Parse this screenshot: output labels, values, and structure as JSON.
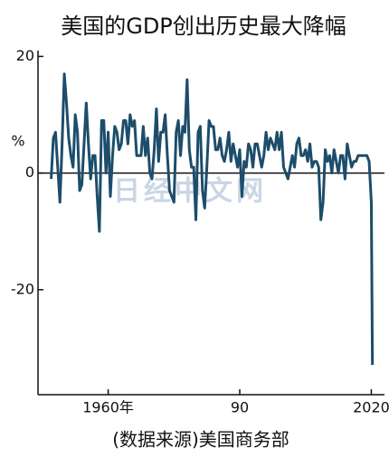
{
  "chart_data": {
    "type": "line",
    "title": "美国的GDP创出历史最大降幅",
    "source": "(数据来源)美国商务部",
    "watermark": "日经中文网",
    "ylabel": "%",
    "color": "#1d4d6a",
    "x": [
      1947.0,
      1947.5,
      1948.0,
      1948.5,
      1949.0,
      1949.5,
      1950.0,
      1950.5,
      1951.0,
      1951.5,
      1952.0,
      1952.5,
      1953.0,
      1953.5,
      1954.0,
      1954.5,
      1955.0,
      1955.5,
      1956.0,
      1956.5,
      1957.0,
      1957.5,
      1958.0,
      1958.5,
      1959.0,
      1959.5,
      1960.0,
      1960.5,
      1961.0,
      1961.5,
      1962.0,
      1962.5,
      1963.0,
      1963.5,
      1964.0,
      1964.5,
      1965.0,
      1965.5,
      1966.0,
      1966.5,
      1967.0,
      1967.5,
      1968.0,
      1968.5,
      1969.0,
      1969.5,
      1970.0,
      1970.5,
      1971.0,
      1971.5,
      1972.0,
      1972.5,
      1973.0,
      1973.5,
      1974.0,
      1974.5,
      1975.0,
      1975.5,
      1976.0,
      1976.5,
      1977.0,
      1977.5,
      1978.0,
      1978.5,
      1979.0,
      1979.5,
      1980.0,
      1980.5,
      1981.0,
      1981.5,
      1982.0,
      1982.5,
      1983.0,
      1983.5,
      1984.0,
      1984.5,
      1985.0,
      1985.5,
      1986.0,
      1986.5,
      1987.0,
      1987.5,
      1988.0,
      1988.5,
      1989.0,
      1989.5,
      1990.0,
      1990.5,
      1991.0,
      1991.5,
      1992.0,
      1992.5,
      1993.0,
      1993.5,
      1994.0,
      1994.5,
      1995.0,
      1995.5,
      1996.0,
      1996.5,
      1997.0,
      1997.5,
      1998.0,
      1998.5,
      1999.0,
      1999.5,
      2000.0,
      2000.5,
      2001.0,
      2001.5,
      2002.0,
      2002.5,
      2003.0,
      2003.5,
      2004.0,
      2004.5,
      2005.0,
      2005.5,
      2006.0,
      2006.5,
      2007.0,
      2007.5,
      2008.0,
      2008.5,
      2009.0,
      2009.5,
      2010.0,
      2010.5,
      2011.0,
      2011.5,
      2012.0,
      2012.5,
      2013.0,
      2013.5,
      2014.0,
      2014.5,
      2015.0,
      2015.5,
      2016.0,
      2016.5,
      2017.0,
      2017.5,
      2018.0,
      2018.5,
      2019.0,
      2019.5,
      2020.0,
      2020.25
    ],
    "values": [
      -1,
      6,
      7,
      1,
      -5,
      5,
      17,
      12,
      6,
      3,
      1,
      10,
      7,
      -3,
      -2,
      5,
      12,
      5,
      -1,
      3,
      3,
      -4,
      -10,
      9,
      9,
      0,
      7,
      -4,
      3,
      8,
      7,
      4,
      5,
      9,
      9,
      5,
      10,
      8,
      9,
      3,
      3,
      3,
      8,
      3,
      6,
      0,
      -1,
      4,
      11,
      2,
      7,
      7,
      10,
      3,
      -3,
      -4,
      -5,
      7,
      9,
      3,
      8,
      7,
      16,
      4,
      1,
      1,
      -8,
      7,
      8,
      -3,
      -6,
      1,
      9,
      8,
      8,
      4,
      4,
      6,
      3,
      2,
      4,
      7,
      2,
      5,
      3,
      1,
      4,
      -4,
      2,
      1,
      5,
      4,
      1,
      5,
      5,
      3,
      1,
      3,
      7,
      4,
      6,
      5,
      4,
      7,
      4,
      7,
      1,
      0,
      -1,
      1,
      3,
      1,
      5,
      6,
      3,
      3,
      4,
      2,
      5,
      1,
      2,
      2,
      1,
      -8,
      -5,
      4,
      2,
      3,
      0,
      4,
      2,
      0,
      3,
      3,
      -1,
      5,
      3,
      1,
      2,
      2,
      3,
      3,
      3,
      3,
      3,
      2,
      -5,
      -32.9
    ],
    "xlim": [
      1944,
      2023
    ],
    "ylim": [
      -38,
      21
    ],
    "xticks": [
      {
        "value": 1960,
        "label": "1960年"
      },
      {
        "value": 1990,
        "label": "90"
      },
      2020
    ],
    "yticks": [
      20,
      0,
      -20
    ]
  }
}
